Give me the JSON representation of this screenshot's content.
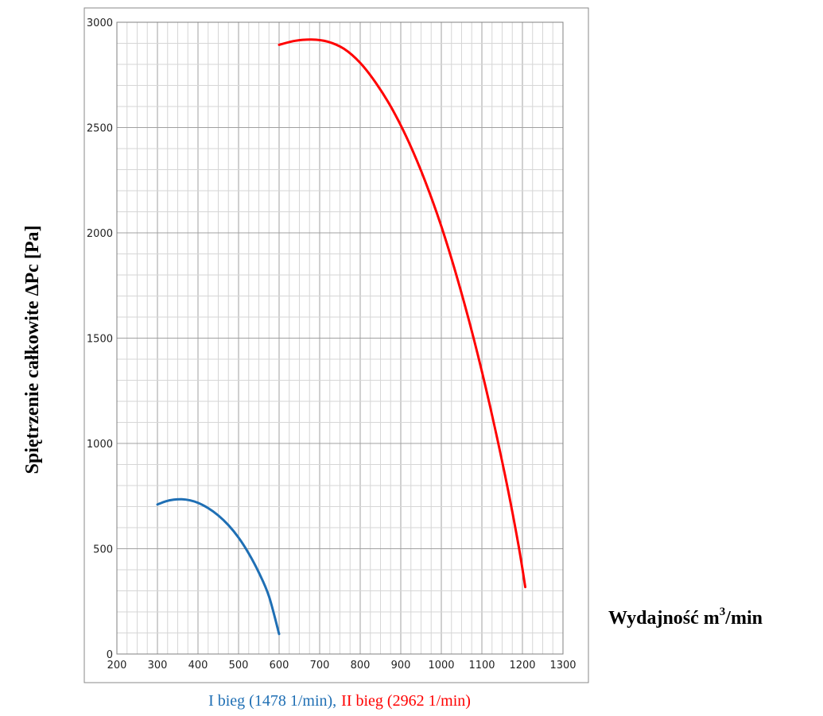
{
  "chart_data": {
    "type": "line",
    "title": "",
    "ylabel": "Spiętrzenie całkowite   ΔPc   [Pa]",
    "xlabel_main": "Wydajność m",
    "xlabel_sup": "3",
    "xlabel_tail": "/min",
    "x_ticks": [
      "200",
      "300",
      "400",
      "500",
      "600",
      "700",
      "800",
      "900",
      "1000",
      "1100",
      "1200",
      "1300"
    ],
    "y_ticks": [
      "0",
      "500",
      "1000",
      "1500",
      "2000",
      "2500",
      "3000"
    ],
    "xlim": [
      200,
      1300
    ],
    "ylim": [
      0,
      3000
    ],
    "grid": true,
    "legend_caption": {
      "part1": "I bieg (1478 1/min),",
      "part2": "II bieg (2962 1/min)"
    },
    "series": [
      {
        "name": "I bieg (1478 1/min)",
        "color": "#1f6fb4",
        "points": [
          [
            300,
            710
          ],
          [
            320,
            725
          ],
          [
            340,
            733
          ],
          [
            360,
            735
          ],
          [
            380,
            730
          ],
          [
            400,
            718
          ],
          [
            425,
            693
          ],
          [
            450,
            658
          ],
          [
            475,
            612
          ],
          [
            500,
            553
          ],
          [
            525,
            478
          ],
          [
            550,
            387
          ],
          [
            575,
            274
          ],
          [
            600,
            95
          ]
        ]
      },
      {
        "name": "II bieg (2962 1/min)",
        "color": "#ff0000",
        "points": [
          [
            600,
            2893
          ],
          [
            640,
            2912
          ],
          [
            680,
            2918
          ],
          [
            720,
            2908
          ],
          [
            760,
            2874
          ],
          [
            800,
            2807
          ],
          [
            840,
            2708
          ],
          [
            880,
            2584
          ],
          [
            920,
            2430
          ],
          [
            960,
            2246
          ],
          [
            1000,
            2031
          ],
          [
            1040,
            1780
          ],
          [
            1080,
            1497
          ],
          [
            1120,
            1178
          ],
          [
            1160,
            822
          ],
          [
            1190,
            520
          ],
          [
            1207,
            318
          ]
        ]
      }
    ]
  }
}
